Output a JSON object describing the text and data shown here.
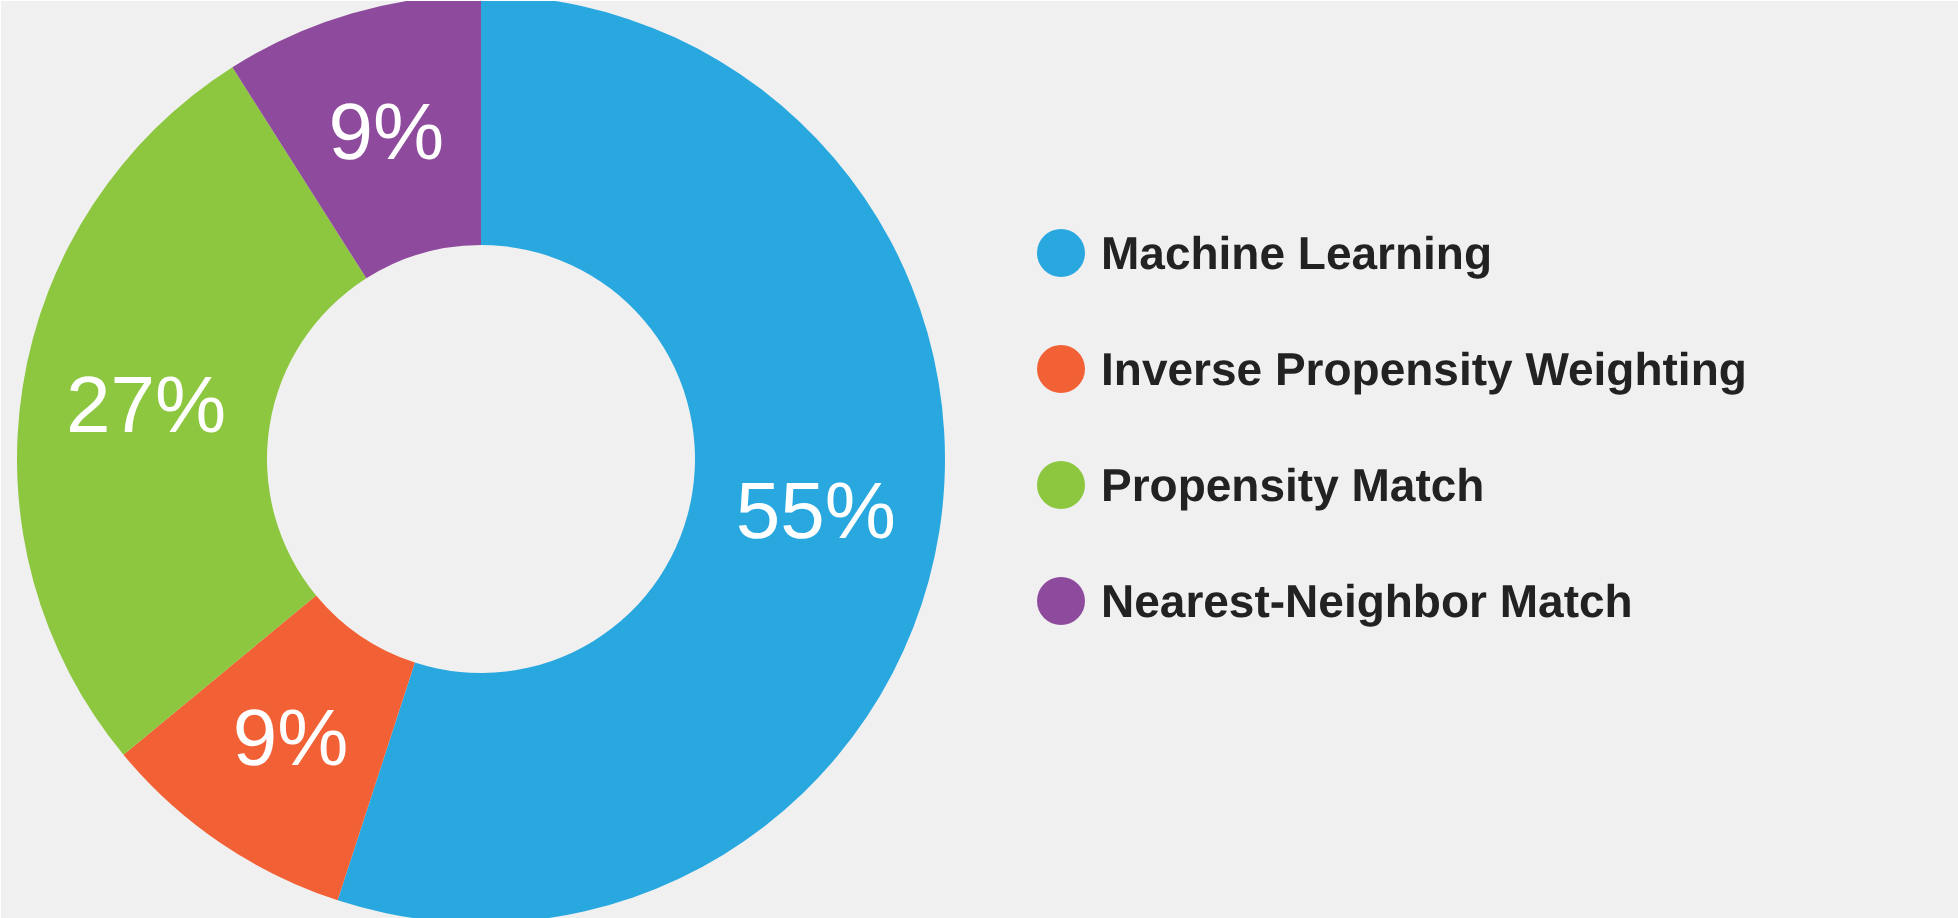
{
  "chart_data": {
    "type": "donut",
    "categories": [
      "Machine Learning",
      "Inverse Propensity Weighting",
      "Propensity Match",
      "Nearest-Neighbor Match"
    ],
    "values": [
      55,
      9,
      27,
      9
    ],
    "colors": [
      "#29a8e0",
      "#f26135",
      "#8dc63f",
      "#8e4b9d"
    ],
    "value_labels": [
      "55%",
      "9%",
      "27%",
      "9%"
    ],
    "legend": "right"
  }
}
